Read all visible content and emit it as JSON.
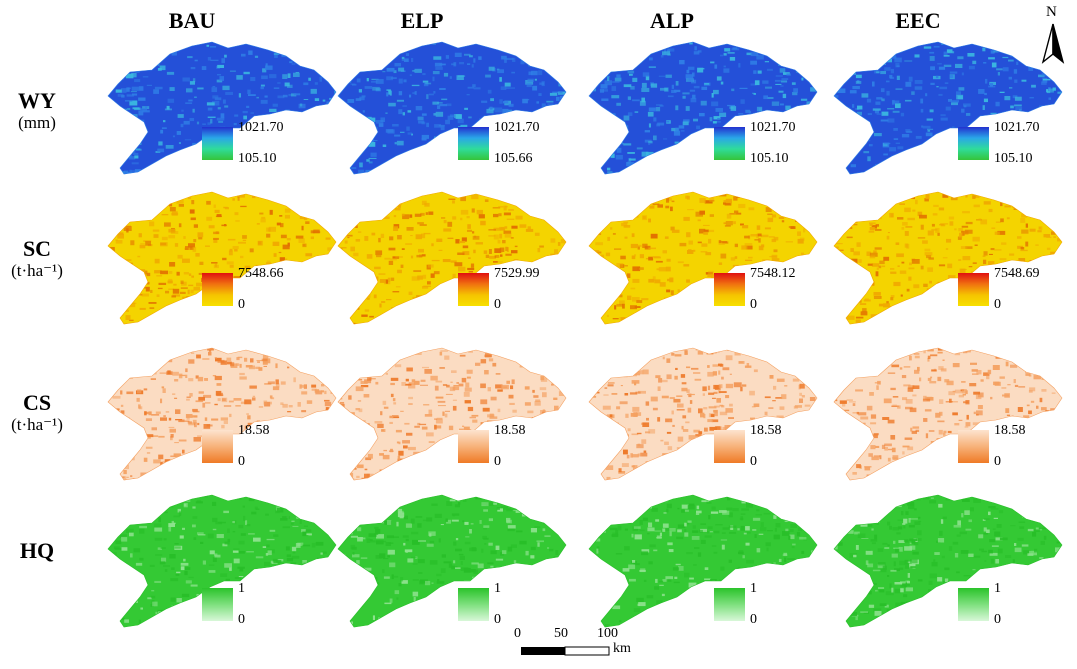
{
  "columns": [
    "BAU",
    "ELP",
    "ALP",
    "EEC"
  ],
  "rows": [
    {
      "label": "WY",
      "unit": "(mm)",
      "ramp": [
        "#2331cf",
        "#2aa7e8",
        "#2fdc9a",
        "#35c43a"
      ],
      "map_colors": [
        "#2450d8",
        "#2f7ee6",
        "#3ab8e0"
      ]
    },
    {
      "label": "SC",
      "unit": "(t·ha⁻¹)",
      "ramp": [
        "#e01010",
        "#f07010",
        "#f5c400",
        "#f7e000"
      ],
      "map_colors": [
        "#f4d400",
        "#f0a800",
        "#e27000"
      ]
    },
    {
      "label": "CS",
      "unit": "(t·ha⁻¹)",
      "ramp": [
        "#fde3cf",
        "#f7b27a",
        "#ef7a26"
      ],
      "map_colors": [
        "#fbdcc2",
        "#f4a060",
        "#ee7a2a"
      ]
    },
    {
      "label": "HQ",
      "unit": "",
      "ramp": [
        "#2ac32a",
        "#7ee07e",
        "#d8f7d8"
      ],
      "map_colors": [
        "#34c934",
        "#28be28",
        "#8fe28f"
      ]
    }
  ],
  "legends": [
    [
      {
        "max": "1021.70",
        "min": "105.10"
      },
      {
        "max": "1021.70",
        "min": "105.66"
      },
      {
        "max": "1021.70",
        "min": "105.10"
      },
      {
        "max": "1021.70",
        "min": "105.10"
      }
    ],
    [
      {
        "max": "7548.66",
        "min": "0"
      },
      {
        "max": "7529.99",
        "min": "0"
      },
      {
        "max": "7548.12",
        "min": "0"
      },
      {
        "max": "7548.69",
        "min": "0"
      }
    ],
    [
      {
        "max": "18.58",
        "min": "0"
      },
      {
        "max": "18.58",
        "min": "0"
      },
      {
        "max": "18.58",
        "min": "0"
      },
      {
        "max": "18.58",
        "min": "0"
      }
    ],
    [
      {
        "max": "1",
        "min": "0"
      },
      {
        "max": "1",
        "min": "0"
      },
      {
        "max": "1",
        "min": "0"
      },
      {
        "max": "1",
        "min": "0"
      }
    ]
  ],
  "north_label": "N",
  "scale_bar": {
    "ticks": [
      "0",
      "50",
      "100"
    ],
    "unit": "km"
  }
}
